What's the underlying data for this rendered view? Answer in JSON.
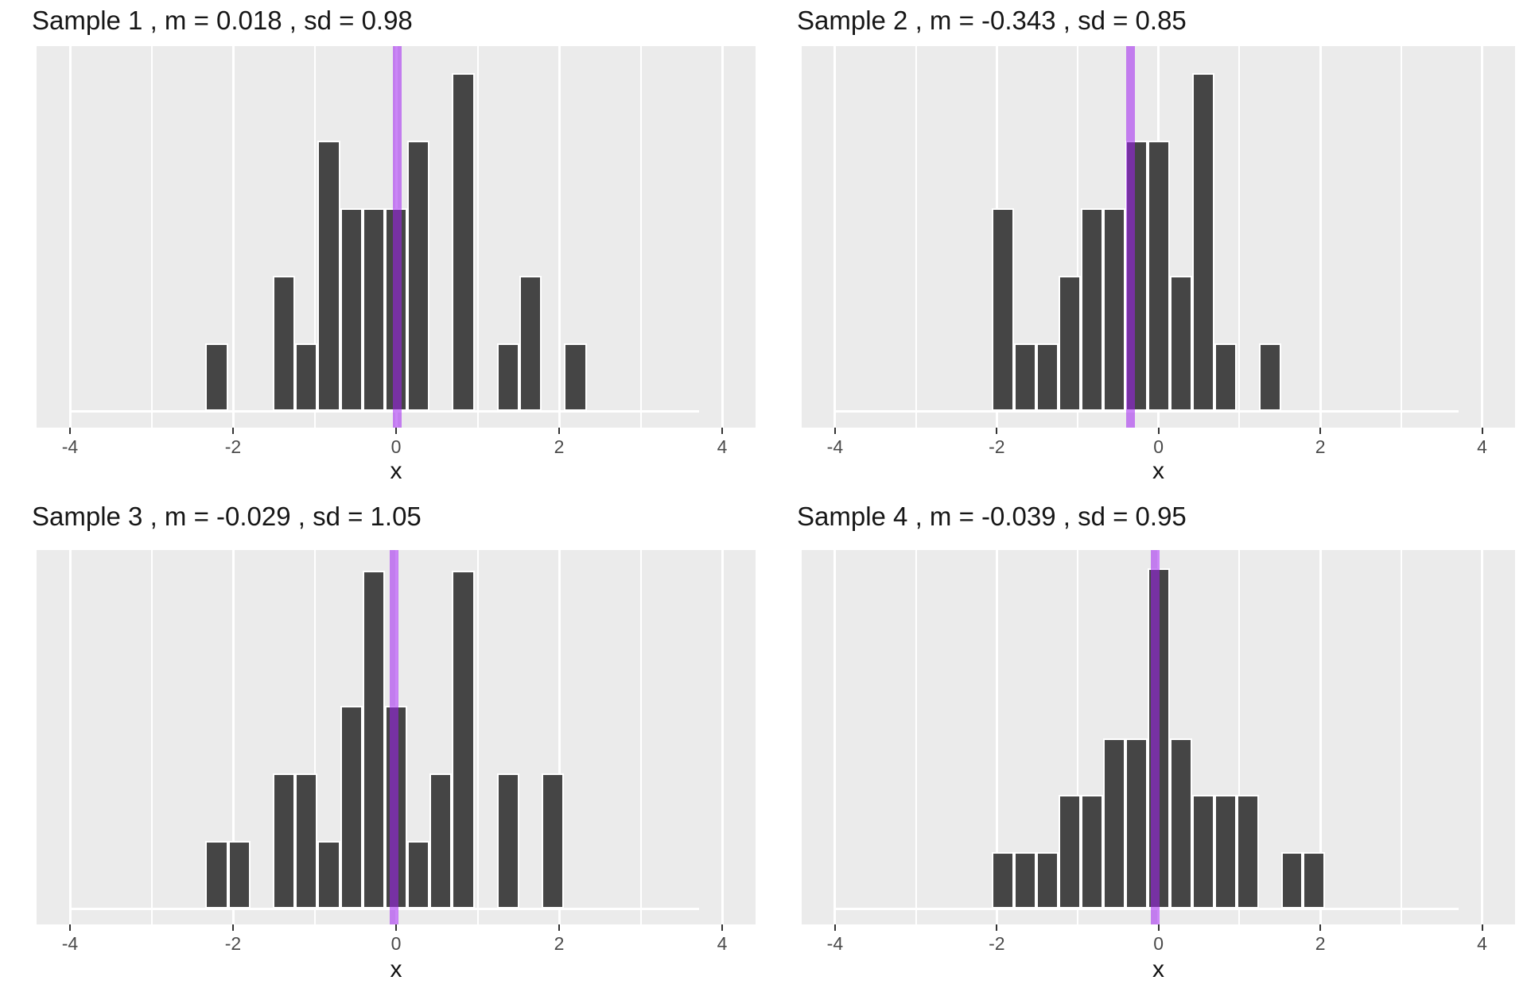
{
  "figure": {
    "xlabel": "x",
    "x_ticks": [
      -4,
      -2,
      0,
      2,
      4
    ],
    "x_minor_ticks": [
      -3,
      -1,
      1,
      3
    ],
    "colors": {
      "page_background": "#FFFFFF",
      "panel_background": "#EBEBEB",
      "bar_fill": "#454545",
      "bar_stroke": "#FFFFFF",
      "gridline": "#FFFFFF",
      "mean_line": "rgba(160,32,240,0.55)",
      "tick": "#333333",
      "tick_label": "#4A4A4A",
      "title_text": "#161616"
    }
  },
  "chart_data": [
    {
      "type": "bar",
      "subtype": "histogram",
      "title": "Sample 1 , m = 0.018 , sd = 0.98",
      "sample": "Sample 1",
      "mean": 0.018,
      "sd": 0.98,
      "xlabel": "x",
      "xlim": [
        -4.41,
        4.41
      ],
      "binwidth": 0.275,
      "ymax_counts": 5,
      "mean_line_x": 0.018,
      "bins": [
        {
          "x": -2.2,
          "count": 1
        },
        {
          "x": -1.375,
          "count": 2
        },
        {
          "x": -1.1,
          "count": 1
        },
        {
          "x": -0.825,
          "count": 4
        },
        {
          "x": -0.55,
          "count": 3
        },
        {
          "x": -0.275,
          "count": 3
        },
        {
          "x": 0.0,
          "count": 3
        },
        {
          "x": 0.275,
          "count": 4
        },
        {
          "x": 0.825,
          "count": 5
        },
        {
          "x": 1.375,
          "count": 1
        },
        {
          "x": 1.65,
          "count": 2
        },
        {
          "x": 2.2,
          "count": 1
        }
      ]
    },
    {
      "type": "bar",
      "subtype": "histogram",
      "title": "Sample 2 , m = -0.343 , sd = 0.85",
      "sample": "Sample 2",
      "mean": -0.343,
      "sd": 0.85,
      "xlabel": "x",
      "xlim": [
        -4.41,
        4.41
      ],
      "binwidth": 0.275,
      "ymax_counts": 5,
      "mean_line_x": -0.343,
      "bins": [
        {
          "x": -1.925,
          "count": 3
        },
        {
          "x": -1.65,
          "count": 1
        },
        {
          "x": -1.375,
          "count": 1
        },
        {
          "x": -1.1,
          "count": 2
        },
        {
          "x": -0.825,
          "count": 3
        },
        {
          "x": -0.55,
          "count": 3
        },
        {
          "x": -0.275,
          "count": 4
        },
        {
          "x": 0.0,
          "count": 4
        },
        {
          "x": 0.275,
          "count": 2
        },
        {
          "x": 0.55,
          "count": 5
        },
        {
          "x": 0.825,
          "count": 1
        },
        {
          "x": 1.375,
          "count": 1
        }
      ]
    },
    {
      "type": "bar",
      "subtype": "histogram",
      "title": "Sample 3 , m = -0.029 , sd = 1.05",
      "sample": "Sample 3",
      "mean": -0.029,
      "sd": 1.05,
      "xlabel": "x",
      "xlim": [
        -4.41,
        4.41
      ],
      "binwidth": 0.275,
      "ymax_counts": 5,
      "mean_line_x": -0.029,
      "bins": [
        {
          "x": -2.2,
          "count": 1
        },
        {
          "x": -1.925,
          "count": 1
        },
        {
          "x": -1.375,
          "count": 2
        },
        {
          "x": -1.1,
          "count": 2
        },
        {
          "x": -0.825,
          "count": 1
        },
        {
          "x": -0.55,
          "count": 3
        },
        {
          "x": -0.275,
          "count": 5
        },
        {
          "x": 0.0,
          "count": 3
        },
        {
          "x": 0.275,
          "count": 1
        },
        {
          "x": 0.55,
          "count": 2
        },
        {
          "x": 0.825,
          "count": 5
        },
        {
          "x": 1.375,
          "count": 2
        },
        {
          "x": 1.925,
          "count": 2
        }
      ]
    },
    {
      "type": "bar",
      "subtype": "histogram",
      "title": "Sample 4 , m = -0.039 , sd = 0.95",
      "sample": "Sample 4",
      "mean": -0.039,
      "sd": 0.95,
      "xlabel": "x",
      "xlim": [
        -4.41,
        4.41
      ],
      "binwidth": 0.275,
      "ymax_counts": 6,
      "mean_line_x": -0.039,
      "bins": [
        {
          "x": -1.925,
          "count": 1
        },
        {
          "x": -1.65,
          "count": 1
        },
        {
          "x": -1.375,
          "count": 1
        },
        {
          "x": -1.1,
          "count": 2
        },
        {
          "x": -0.825,
          "count": 2
        },
        {
          "x": -0.55,
          "count": 3
        },
        {
          "x": -0.275,
          "count": 3
        },
        {
          "x": 0.0,
          "count": 6
        },
        {
          "x": 0.275,
          "count": 3
        },
        {
          "x": 0.55,
          "count": 2
        },
        {
          "x": 0.825,
          "count": 2
        },
        {
          "x": 1.1,
          "count": 2
        },
        {
          "x": 1.65,
          "count": 1
        },
        {
          "x": 1.925,
          "count": 1
        }
      ]
    }
  ]
}
